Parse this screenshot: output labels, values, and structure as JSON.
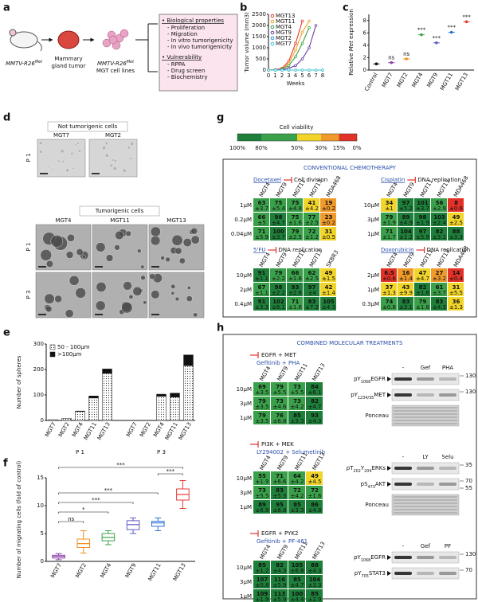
{
  "figure": {
    "a": {
      "label": "a",
      "mouse": {
        "pre": "MMTV-R26",
        "sup": "Met"
      },
      "tumor": [
        "Mammary",
        "gland tumor"
      ],
      "lines": {
        "pre": "MMTV-R26",
        "sup": "Met"
      },
      "lines_caption": "MGT cell lines",
      "box": [
        {
          "heading": "• Biological properties",
          "items": [
            "- Proliferation",
            "- Migration",
            "- In vitro tumorigenicity",
            "- In vivo tumorigenicity"
          ]
        },
        {
          "heading": "• Vulnerability",
          "items": [
            "- RPPA",
            "- Drug screen",
            "- Biochemistry"
          ]
        }
      ]
    },
    "d": {
      "label": "d",
      "not_title": "Not tumorigenic cells",
      "not_cols": [
        "MGT7",
        "MGT2"
      ],
      "not_rows": [
        "P 1"
      ],
      "tum_title": "Tumorigenic cells",
      "tum_cols": [
        "MGT4",
        "MGT11",
        "MGT13"
      ],
      "tum_rows": [
        "P 1",
        "P 3"
      ]
    },
    "g": {
      "label": "g",
      "colorbar": {
        "title": "Cell viability",
        "stops": [
          {
            "value": 100,
            "label": "100%"
          },
          {
            "value": 80,
            "label": "80%"
          },
          {
            "value": 50,
            "label": "50%"
          },
          {
            "value": 30,
            "label": "30%"
          },
          {
            "value": 15,
            "label": "15%"
          },
          {
            "value": 0,
            "label": "0%"
          }
        ],
        "colors": [
          "#1e7f3a",
          "#3aa04a",
          "#f2d52b",
          "#f09a2a",
          "#e23227"
        ]
      },
      "box_title": "CONVENTIONAL CHEMOTHERAPY",
      "tables": [
        {
          "drug": "Docetaxel",
          "target": "Cell division",
          "columns": [
            "MGT4",
            "MGT9",
            "MGT11",
            "MGT13",
            "MDA468"
          ],
          "rows": [
            {
              "dose": "1µM",
              "values": [
                63,
                75,
                75,
                41,
                19
              ],
              "errors": [
                "±3.7",
                "±5.4",
                "±4.8",
                "±4.2",
                "±0.2"
              ]
            },
            {
              "dose": "0.2µM",
              "values": [
                66,
                98,
                75,
                77,
                23
              ],
              "errors": [
                "±5",
                "±4.7",
                "±1.6",
                "±2.5",
                "±0.2"
              ]
            },
            {
              "dose": "0.04µM",
              "values": [
                71,
                100,
                79,
                72,
                31
              ],
              "errors": [
                "±5.9",
                "±3.7",
                "±2.5",
                "±1.2",
                "±0.5"
              ]
            }
          ]
        },
        {
          "drug": "Cisplatin",
          "target": "DNA replication",
          "columns": [
            "MGT4",
            "MGT9",
            "MGT11",
            "MGT13",
            "MDA468"
          ],
          "rows": [
            {
              "dose": "10µM",
              "values": [
                34,
                97,
                101,
                56,
                8
              ],
              "errors": [
                "±1",
                "±5.2",
                "±3.7",
                "±2.9",
                "±0.6"
              ]
            },
            {
              "dose": "3µM",
              "values": [
                79,
                89,
                98,
                103,
                49
              ],
              "errors": [
                "±1.9",
                "±4.9",
                "±1.9",
                "±2.4",
                "±2.5"
              ]
            },
            {
              "dose": "1µM",
              "values": [
                71,
                104,
                97,
                82,
                88
              ],
              "errors": [
                "±1.7",
                "±1.2",
                "±5.9",
                "±3.1",
                "±3.3"
              ]
            }
          ]
        },
        {
          "drug": "5'FU",
          "target": "DNA replication",
          "columns": [
            "MGT4",
            "MGT9",
            "MGT11",
            "MGT13",
            "SKBR3"
          ],
          "rows": [
            {
              "dose": "10µM",
              "values": [
                91,
                79,
                66,
                62,
                49
              ],
              "errors": [
                "±1.1",
                "±2.2",
                "±1.6",
                "±2.5",
                "±1.5"
              ]
            },
            {
              "dose": "2µM",
              "values": [
                67,
                98,
                93,
                97,
                42
              ],
              "errors": [
                "±1.1",
                "±2.2",
                "±2.6",
                "±4",
                "±1.4"
              ]
            },
            {
              "dose": "0.4µM",
              "values": [
                91,
                102,
                71,
                83,
                105
              ],
              "errors": [
                "±3.3",
                "±6.1",
                "±1.6",
                "±7.2",
                "±4.3"
              ]
            }
          ]
        },
        {
          "drug": "Doxorubicin",
          "target": "DNA replication",
          "columns": [
            "MGT4",
            "MGT9",
            "MGT11",
            "MGT13",
            "MDA468"
          ],
          "rows": [
            {
              "dose": "2µM",
              "values": [
                6.5,
                16,
                47,
                27,
                14
              ],
              "errors": [
                "±0.6",
                "±1.4",
                "±4.7",
                "±3.2",
                "±0.4"
              ]
            },
            {
              "dose": "1µM",
              "values": [
                37,
                43,
                82,
                61,
                31
              ],
              "errors": [
                "±1.3",
                "±9.9",
                "±1.6",
                "±3.7",
                "±5.5"
              ]
            },
            {
              "dose": "0.3µM",
              "values": [
                74,
                83,
                79,
                83,
                36
              ],
              "errors": [
                "±0.8",
                "±3.1",
                "±1.8",
                "±4.3",
                "±1.3"
              ]
            }
          ]
        }
      ]
    },
    "h": {
      "label": "h",
      "box_title": "COMBINED MOLECULAR TREATMENTS",
      "tables": [
        {
          "targets": "EGFR + MET",
          "drugs": "Gefitinib + PHA",
          "columns": [
            "MGT4",
            "MGT9",
            "MGT11",
            "MGT13"
          ],
          "rows": [
            {
              "dose": "10µM",
              "values": [
                69,
                79,
                73,
                84
              ],
              "errors": [
                "±3.5",
                "±5.5",
                "±5.5",
                "±6.1"
              ]
            },
            {
              "dose": "3µM",
              "values": [
                79,
                73,
                73,
                82
              ],
              "errors": [
                "±3.5",
                "±4.6",
                "±4.2",
                "±4.7"
              ]
            },
            {
              "dose": "1µM",
              "values": [
                79,
                76,
                85,
                93
              ],
              "errors": [
                "±3.5",
                "±6.8",
                "±3.3",
                "±4.3"
              ]
            }
          ]
        },
        {
          "targets": "PI3K + MEK",
          "drugs": "LY294002 + Selumetinib",
          "columns": [
            "MGT4",
            "MGT9",
            "MGT11",
            "MGT13"
          ],
          "rows": [
            {
              "dose": "10µM",
              "values": [
                55,
                71,
                64,
                49
              ],
              "errors": [
                "±1.9",
                "±6.6",
                "±4.2",
                "±4.5"
              ]
            },
            {
              "dose": "3µM",
              "values": [
                73,
                83,
                72,
                72
              ],
              "errors": [
                "±5.5",
                "±5.3",
                "±4.2",
                "±1.6"
              ]
            },
            {
              "dose": "1µM",
              "values": [
                89,
                95,
                85,
                86
              ],
              "errors": [
                "±6.9",
                "±6.8",
                "±3.3",
                "±4.8"
              ]
            }
          ]
        },
        {
          "targets": "EGFR + PYK2",
          "drugs": "Gefitinib + PF-461",
          "columns": [
            "MGT4",
            "MGT9",
            "MGT11",
            "MGT13"
          ],
          "rows": [
            {
              "dose": "10µM",
              "values": [
                85,
                82,
                105,
                88
              ],
              "errors": [
                "±1.2",
                "±4.3",
                "±6.8",
                "±4.3"
              ]
            },
            {
              "dose": "3µM",
              "values": [
                107,
                116,
                85,
                104
              ],
              "errors": [
                "±0.8",
                "±5.9",
                "±4.7",
                "±3.3"
              ]
            },
            {
              "dose": "1µM",
              "values": [
                109,
                113,
                100,
                85
              ],
              "errors": [
                "±1.9",
                "±5.9",
                "±4.4",
                "±2.9"
              ]
            }
          ]
        }
      ],
      "blots": [
        {
          "lanes": [
            "-",
            "Gef",
            "PHA"
          ],
          "bands": [
            {
              "label": {
                "pre": "pY",
                "sub": "1068",
                "post": "EGFR"
              },
              "markers": [
                130
              ]
            },
            {
              "label": {
                "pre": "pY",
                "sub": "1234/35",
                "post": "MET"
              },
              "markers": [
                130
              ]
            }
          ],
          "ponceau": "Ponceau"
        },
        {
          "lanes": [
            "-",
            "LY",
            "Selu"
          ],
          "bands": [
            {
              "label": {
                "pre": "pT",
                "sub": "202",
                "mid": "Y",
                "sub2": "204",
                "post": "ERKs"
              },
              "markers": [
                35
              ]
            },
            {
              "label": {
                "pre": "pS",
                "sub": "473",
                "post": "AKT"
              },
              "markers": [
                70,
                55
              ]
            }
          ],
          "ponceau": "Ponceau"
        },
        {
          "lanes": [
            "-",
            "Gef",
            "PF"
          ],
          "bands": [
            {
              "label": {
                "pre": "pY",
                "sub": "1068",
                "post": "EGFR"
              },
              "markers": [
                130
              ]
            },
            {
              "label": {
                "pre": "pY",
                "sub": "705",
                "post": "STAT3"
              },
              "markers": [
                70
              ]
            }
          ]
        }
      ]
    }
  },
  "chart_data": [
    {
      "type": "line",
      "panel": "b",
      "ylabel": "Tumor volume (mm3)",
      "xlabel": "Weeks",
      "x": [
        0,
        1,
        2,
        3,
        4,
        5,
        6,
        7,
        8
      ],
      "xlim": [
        0,
        8
      ],
      "xticks": [
        0,
        1,
        2,
        3,
        4,
        5,
        6,
        7,
        8
      ],
      "ylim": [
        0,
        2500
      ],
      "yticks": [
        0,
        500,
        1000,
        1500,
        2000,
        2500
      ],
      "legend": "upper left",
      "series": [
        {
          "name": "MGT13",
          "color": "#e53935",
          "values": [
            0,
            20,
            80,
            400,
            1200,
            2200,
            null,
            null,
            null
          ]
        },
        {
          "name": "MGT11",
          "color": "#f0a020",
          "values": [
            0,
            10,
            50,
            300,
            900,
            1700,
            2200,
            null,
            null
          ]
        },
        {
          "name": "MGT4",
          "color": "#3aa04a",
          "values": [
            0,
            10,
            40,
            200,
            600,
            1200,
            1900,
            null,
            null
          ]
        },
        {
          "name": "MGT9",
          "color": "#6a3fa0",
          "values": [
            0,
            5,
            20,
            80,
            200,
            500,
            1000,
            2000,
            null
          ]
        },
        {
          "name": "MGT2",
          "color": "#2b8fd6",
          "values": [
            0,
            0,
            0,
            0,
            0,
            0,
            0,
            0,
            0
          ]
        },
        {
          "name": "MGT7",
          "color": "#3fc6d6",
          "values": [
            0,
            0,
            0,
            0,
            0,
            0,
            0,
            0,
            0
          ]
        }
      ]
    },
    {
      "type": "dot",
      "panel": "c",
      "ylabel": {
        "pre": "Relative ",
        "em": "Met",
        "post": " expression"
      },
      "categories": [
        "Control",
        "MGT7",
        "MGT2",
        "MGT4",
        "MGT9",
        "MGT11",
        "MGT13"
      ],
      "values": [
        1,
        1.2,
        1.8,
        5.7,
        4.4,
        6.1,
        7.8
      ],
      "colors": [
        "#111111",
        "#8e44ad",
        "#f08c20",
        "#3aa04a",
        "#5b5bc8",
        "#2b6fd6",
        "#e53935"
      ],
      "ylim": [
        0,
        9
      ],
      "yticks": [
        0,
        2,
        4,
        6,
        8
      ],
      "annotations": [
        {
          "index": 1,
          "text": "ns"
        },
        {
          "index": 2,
          "text": "ns"
        },
        {
          "index": 3,
          "text": "***"
        },
        {
          "index": 4,
          "text": "***"
        },
        {
          "index": 5,
          "text": "***"
        },
        {
          "index": 6,
          "text": "***"
        }
      ]
    },
    {
      "type": "stacked_bar",
      "panel": "e",
      "ylabel": "Number of spheres",
      "legend": "upper left",
      "groups": [
        {
          "label": "P 1",
          "categories": [
            "MGT7",
            "MGT2",
            "MGT4",
            "MGT11",
            "MGT13"
          ]
        },
        {
          "label": "P 3",
          "categories": [
            "MGT7",
            "MGT2",
            "MGT4",
            "MGT11",
            "MGT13"
          ]
        }
      ],
      "series": [
        {
          "name": "50 - 100µm",
          "color": "#ffffff",
          "pattern": "dots",
          "values": [
            3,
            8,
            35,
            88,
            185,
            0,
            0,
            95,
            92,
            215
          ]
        },
        {
          "name": ">100µm",
          "color": "#111111",
          "values": [
            0,
            0,
            2,
            8,
            17,
            0,
            0,
            8,
            15,
            42
          ]
        }
      ],
      "ylim": [
        0,
        300
      ],
      "yticks": [
        0,
        100,
        200,
        300
      ]
    },
    {
      "type": "box",
      "panel": "f",
      "ylabel": "Number of migrating cells (fold of control)",
      "categories": [
        "MGT7",
        "MGT2",
        "MGT4",
        "MGT9",
        "MGT11",
        "MGT13"
      ],
      "colors": [
        "#8e44ad",
        "#f08c20",
        "#3aa04a",
        "#5b5bc8",
        "#2b6fd6",
        "#e53935"
      ],
      "boxes": [
        {
          "min": 0.3,
          "q1": 0.6,
          "median": 0.9,
          "q3": 1.1,
          "max": 1.4
        },
        {
          "min": 1.5,
          "q1": 2.5,
          "median": 3.2,
          "q3": 4,
          "max": 5.5
        },
        {
          "min": 3,
          "q1": 3.7,
          "median": 4.3,
          "q3": 5,
          "max": 5.5
        },
        {
          "min": 5,
          "q1": 5.7,
          "median": 6.6,
          "q3": 7.3,
          "max": 7.8
        },
        {
          "min": 5.5,
          "q1": 6.3,
          "median": 6.9,
          "q3": 7.2,
          "max": 7.8
        },
        {
          "min": 9.5,
          "q1": 11,
          "median": 12,
          "q3": 13,
          "max": 14.5
        }
      ],
      "ylim": [
        0,
        15
      ],
      "yticks": [
        0,
        5,
        10,
        15
      ],
      "comparisons": [
        {
          "from": 0,
          "to": 1,
          "text": "ns"
        },
        {
          "from": 0,
          "to": 2,
          "text": "*"
        },
        {
          "from": 0,
          "to": 3,
          "text": "***"
        },
        {
          "from": 0,
          "to": 4,
          "text": "***"
        },
        {
          "from": 0,
          "to": 5,
          "text": "***"
        },
        {
          "from": 4,
          "to": 5,
          "text": "***"
        }
      ]
    }
  ]
}
